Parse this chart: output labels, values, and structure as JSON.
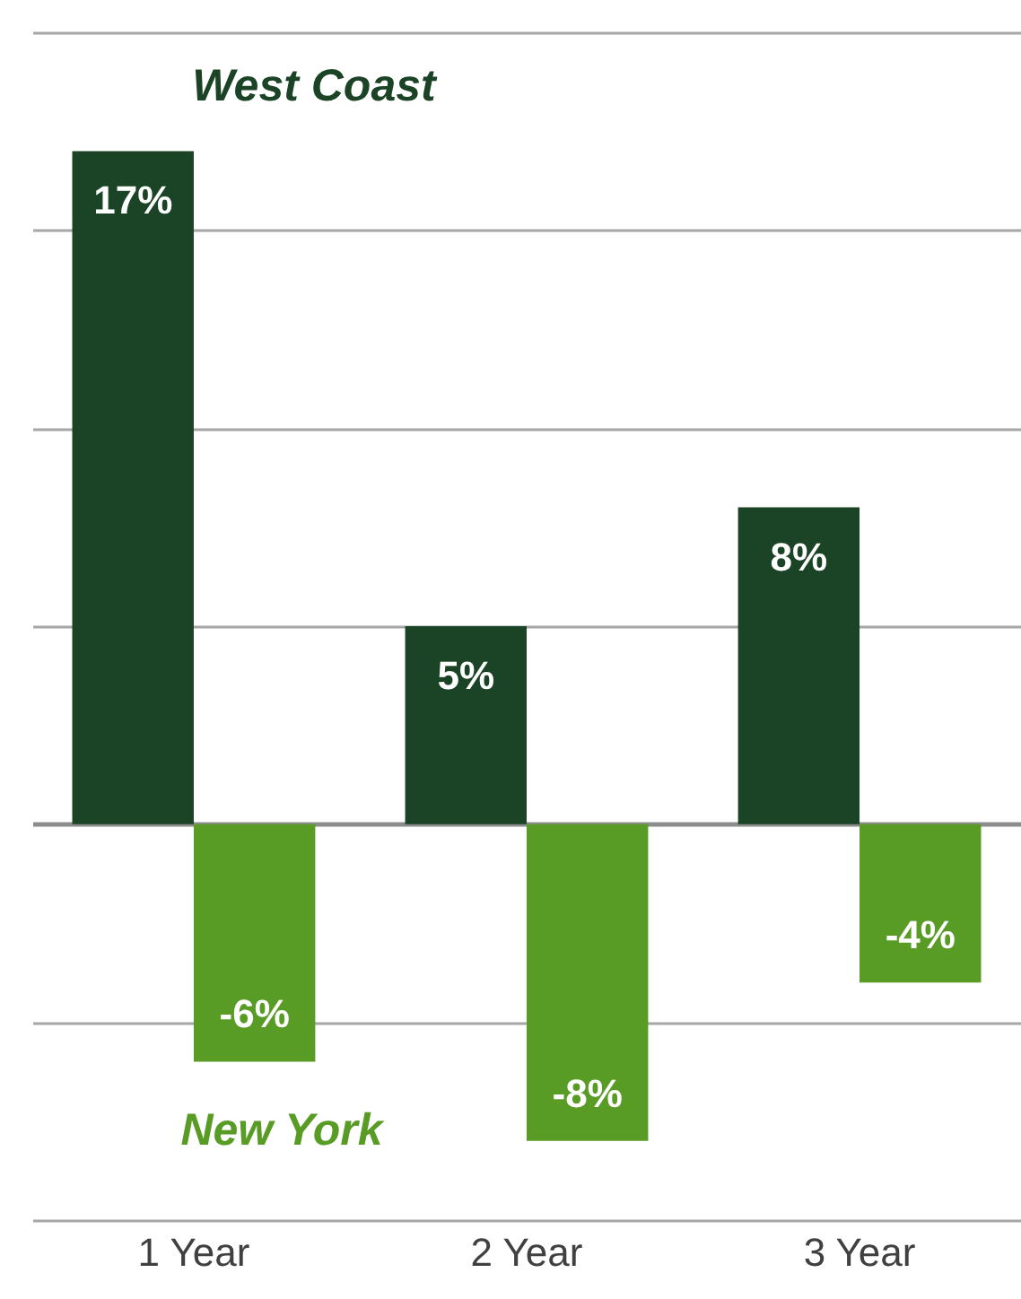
{
  "chart_data": {
    "type": "bar",
    "categories": [
      "1 Year",
      "2 Year",
      "3 Year"
    ],
    "series": [
      {
        "name": "West Coast",
        "color": "#1b4325",
        "values": [
          17,
          5,
          8
        ],
        "value_labels": [
          "17%",
          "5%",
          "8%"
        ]
      },
      {
        "name": "New York",
        "color": "#589b25",
        "values": [
          -6,
          -8,
          -4
        ],
        "value_labels": [
          "-6%",
          "-8%",
          "-4%"
        ]
      }
    ],
    "ylim": [
      -10,
      20
    ],
    "yticks": [
      {
        "value": -10,
        "label": null
      },
      {
        "value": -5,
        "label": null
      },
      {
        "value": 0,
        "label": null
      },
      {
        "value": 5,
        "label": null
      },
      {
        "value": 10,
        "label": null
      },
      {
        "value": 15,
        "label": null
      },
      {
        "value": 20,
        "label": null
      }
    ],
    "grid": "y",
    "legend": false,
    "tick_labels": "x"
  }
}
